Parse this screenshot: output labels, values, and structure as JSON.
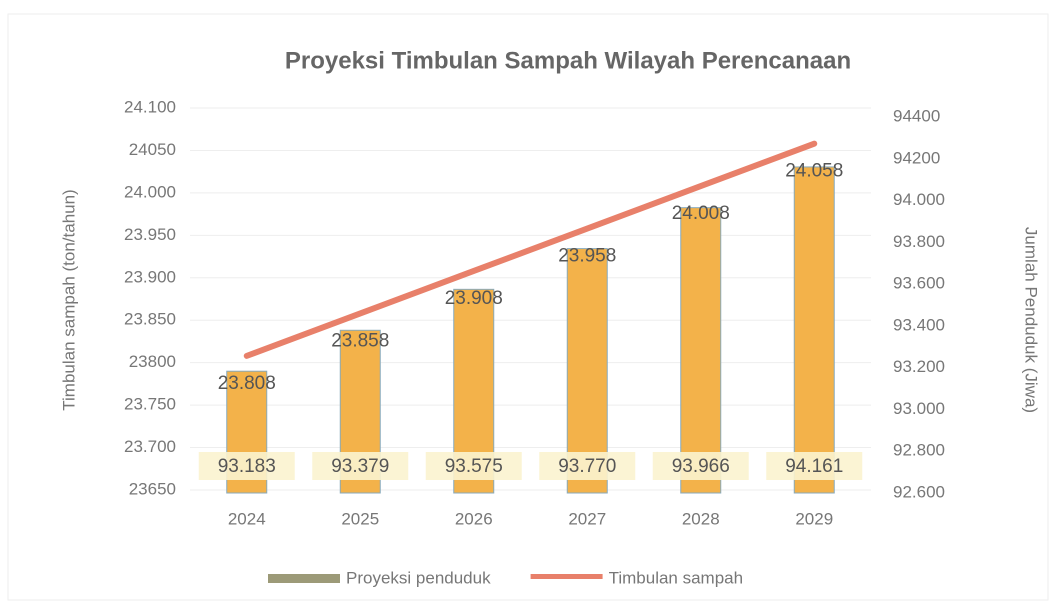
{
  "chart_data": {
    "type": "bar_line",
    "title": "Proyeksi Timbulan Sampah Wilayah Perencanaan",
    "y_label": "Timbulan sampah (ton/tahun)",
    "y2_label": "Jumlah Penduduk (Jiwa)",
    "categories": [
      "2024",
      "2025",
      "2026",
      "2027",
      "2028",
      "2029"
    ],
    "series": [
      {
        "name": "Proyeksi penduduk",
        "type": "bar",
        "axis": "y2",
        "color": "#f3b24a",
        "values": [
          93183,
          93379,
          93575,
          93770,
          93966,
          94161
        ],
        "value_labels": [
          "93.183",
          "93.379",
          "93.575",
          "93.770",
          "93.966",
          "94.161"
        ]
      },
      {
        "name": "Timbulan sampah",
        "type": "line",
        "axis": "y",
        "color": "#e8806a",
        "values": [
          23808,
          23858,
          23908,
          23958,
          24008,
          24058
        ],
        "value_labels": [
          "23.808",
          "23.858",
          "23.908",
          "23.958",
          "24.008",
          "24.058"
        ]
      }
    ],
    "ylim": [
      23650,
      24100
    ],
    "yticks": [
      {
        "value": 23650,
        "label": "23650"
      },
      {
        "value": 23700,
        "label": "23.700"
      },
      {
        "value": 23750,
        "label": "23.750"
      },
      {
        "value": 23800,
        "label": "23800"
      },
      {
        "value": 23850,
        "label": "23.850"
      },
      {
        "value": 23900,
        "label": "23.900"
      },
      {
        "value": 23950,
        "label": "23.950"
      },
      {
        "value": 24000,
        "label": "24.000"
      },
      {
        "value": 24050,
        "label": "24050"
      },
      {
        "value": 24100,
        "label": "24.100"
      }
    ],
    "y2lim": [
      92600,
      94400
    ],
    "y2ticks": [
      {
        "value": 92600,
        "label": "92.600"
      },
      {
        "value": 92800,
        "label": "92.800"
      },
      {
        "value": 93000,
        "label": "93.000"
      },
      {
        "value": 93200,
        "label": "93.200"
      },
      {
        "value": 93400,
        "label": "93.400"
      },
      {
        "value": 93600,
        "label": "93.600"
      },
      {
        "value": 93800,
        "label": "93.800"
      },
      {
        "value": 94000,
        "label": "94.000"
      },
      {
        "value": 94200,
        "label": "94200"
      },
      {
        "value": 94400,
        "label": "94400"
      }
    ],
    "grid": true,
    "legend": "bottom"
  }
}
